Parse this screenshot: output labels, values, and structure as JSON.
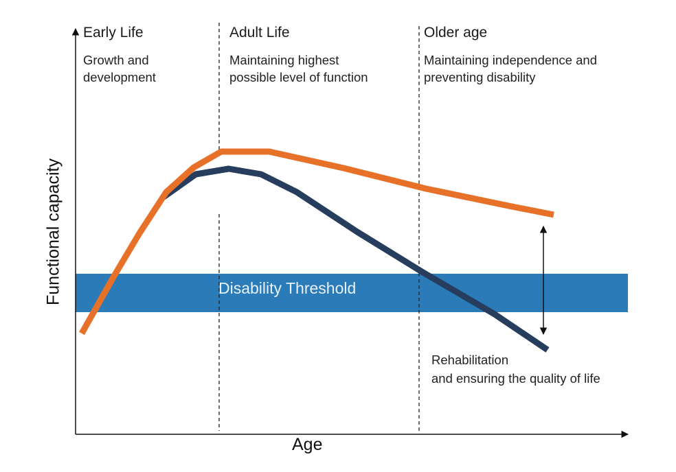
{
  "phases": [
    {
      "title": "Early Life",
      "description": "Growth and\ndevelopment"
    },
    {
      "title": "Adult Life",
      "description": "Maintaining highest\npossible level of function"
    },
    {
      "title": "Older age",
      "description": "Maintaining independence and\npreventing disability"
    }
  ],
  "axes": {
    "x_label": "Age",
    "y_label": "Functional capacity"
  },
  "threshold": {
    "label": "Disability Threshold",
    "color": "#2b7bb8"
  },
  "note": "Rehabilitation\nand ensuring the quality of life",
  "colors": {
    "upper_curve": "#e8712a",
    "lower_curve": "#263d5e",
    "axis": "#111111"
  }
}
